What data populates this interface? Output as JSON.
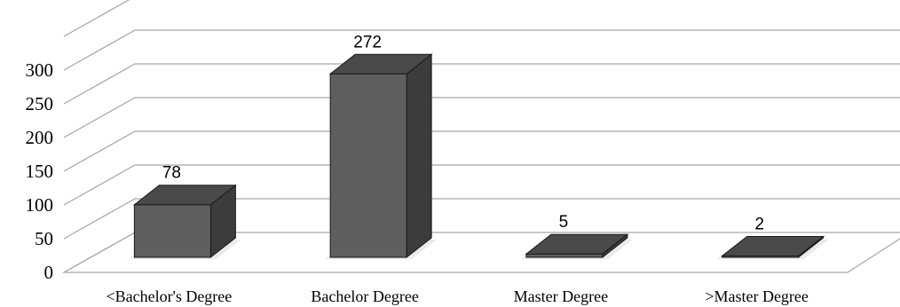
{
  "chart_data": {
    "type": "bar",
    "title": "",
    "xlabel": "",
    "ylabel": "",
    "categories": [
      "<Bachelor's Degree",
      "Bachelor Degree",
      "Master Degree",
      ">Master Degree"
    ],
    "values": [
      78,
      272,
      5,
      2
    ],
    "ylim": [
      0,
      300
    ],
    "yticks": [
      "0",
      "50",
      "100",
      "150",
      "200",
      "250",
      "300"
    ],
    "grid": true,
    "legend": "none",
    "style": "3d-column",
    "colors": {
      "bar_front": "#5f5f5f",
      "bar_top": "#4a4a4a",
      "bar_side": "#3c3c3c",
      "grid": "#a6a6a6"
    }
  }
}
